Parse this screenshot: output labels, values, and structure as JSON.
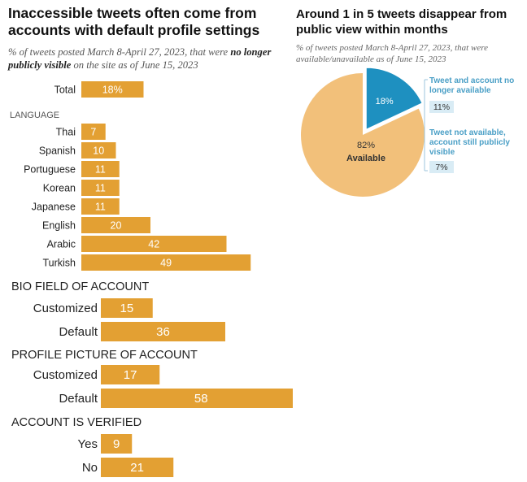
{
  "left_chart": {
    "title": "Inaccessible tweets often come from accounts with default profile settings",
    "subtitle_prefix": "% of tweets posted March 8-April 27, 2023, that were ",
    "subtitle_bold": "no longer publicly visible",
    "subtitle_suffix": " on the site as of June 15, 2023"
  },
  "right_chart": {
    "title": "Around 1 in 5 tweets disappear from public view within months",
    "subtitle": "% of tweets posted March 8-April 27, 2023, that were available/unavailable as of June 15, 2023"
  },
  "colors": {
    "bar": "#e3a033",
    "bar_text": "#ffffff",
    "pie_gone": "#1e90c0",
    "pie_available": "#f2c07a",
    "legend_text": "#4a9fc6",
    "legend_box": "#d9ecf5"
  },
  "chart_data": [
    {
      "type": "bar",
      "orientation": "horizontal",
      "groups": [
        {
          "label": "",
          "size": "small",
          "categories": [
            "Total"
          ],
          "values": [
            18
          ],
          "value_labels": [
            "18%"
          ]
        },
        {
          "label": "LANGUAGE",
          "size": "small",
          "categories": [
            "Thai",
            "Spanish",
            "Portuguese",
            "Korean",
            "Japanese",
            "English",
            "Arabic",
            "Turkish"
          ],
          "values": [
            7,
            10,
            11,
            11,
            11,
            20,
            42,
            49
          ],
          "value_labels": [
            "7",
            "10",
            "11",
            "11",
            "11",
            "20",
            "42",
            "49"
          ]
        },
        {
          "label": "BIO FIELD OF ACCOUNT",
          "size": "large",
          "categories": [
            "Customized",
            "Default"
          ],
          "values": [
            15,
            36
          ],
          "value_labels": [
            "15",
            "36"
          ]
        },
        {
          "label": "PROFILE PICTURE OF ACCOUNT",
          "size": "large",
          "categories": [
            "Customized",
            "Default"
          ],
          "values": [
            17,
            58
          ],
          "value_labels": [
            "17",
            "58"
          ]
        },
        {
          "label": "ACCOUNT IS VERIFIED",
          "size": "large",
          "categories": [
            "Yes",
            "No"
          ],
          "values": [
            9,
            21
          ],
          "value_labels": [
            "9",
            "21"
          ]
        }
      ]
    },
    {
      "type": "pie",
      "slices": [
        {
          "label": "Available",
          "value": 82,
          "value_label": "82%"
        },
        {
          "label": "Tweet and account no longer available / Tweet not available, account still publicly visible",
          "value": 18,
          "value_label": "18%"
        }
      ],
      "breakdown": [
        {
          "label": "Tweet and account no longer available",
          "value": 11,
          "value_label": "11%"
        },
        {
          "label": "Tweet not available, account still publicly visible",
          "value": 7,
          "value_label": "7%"
        }
      ]
    }
  ]
}
